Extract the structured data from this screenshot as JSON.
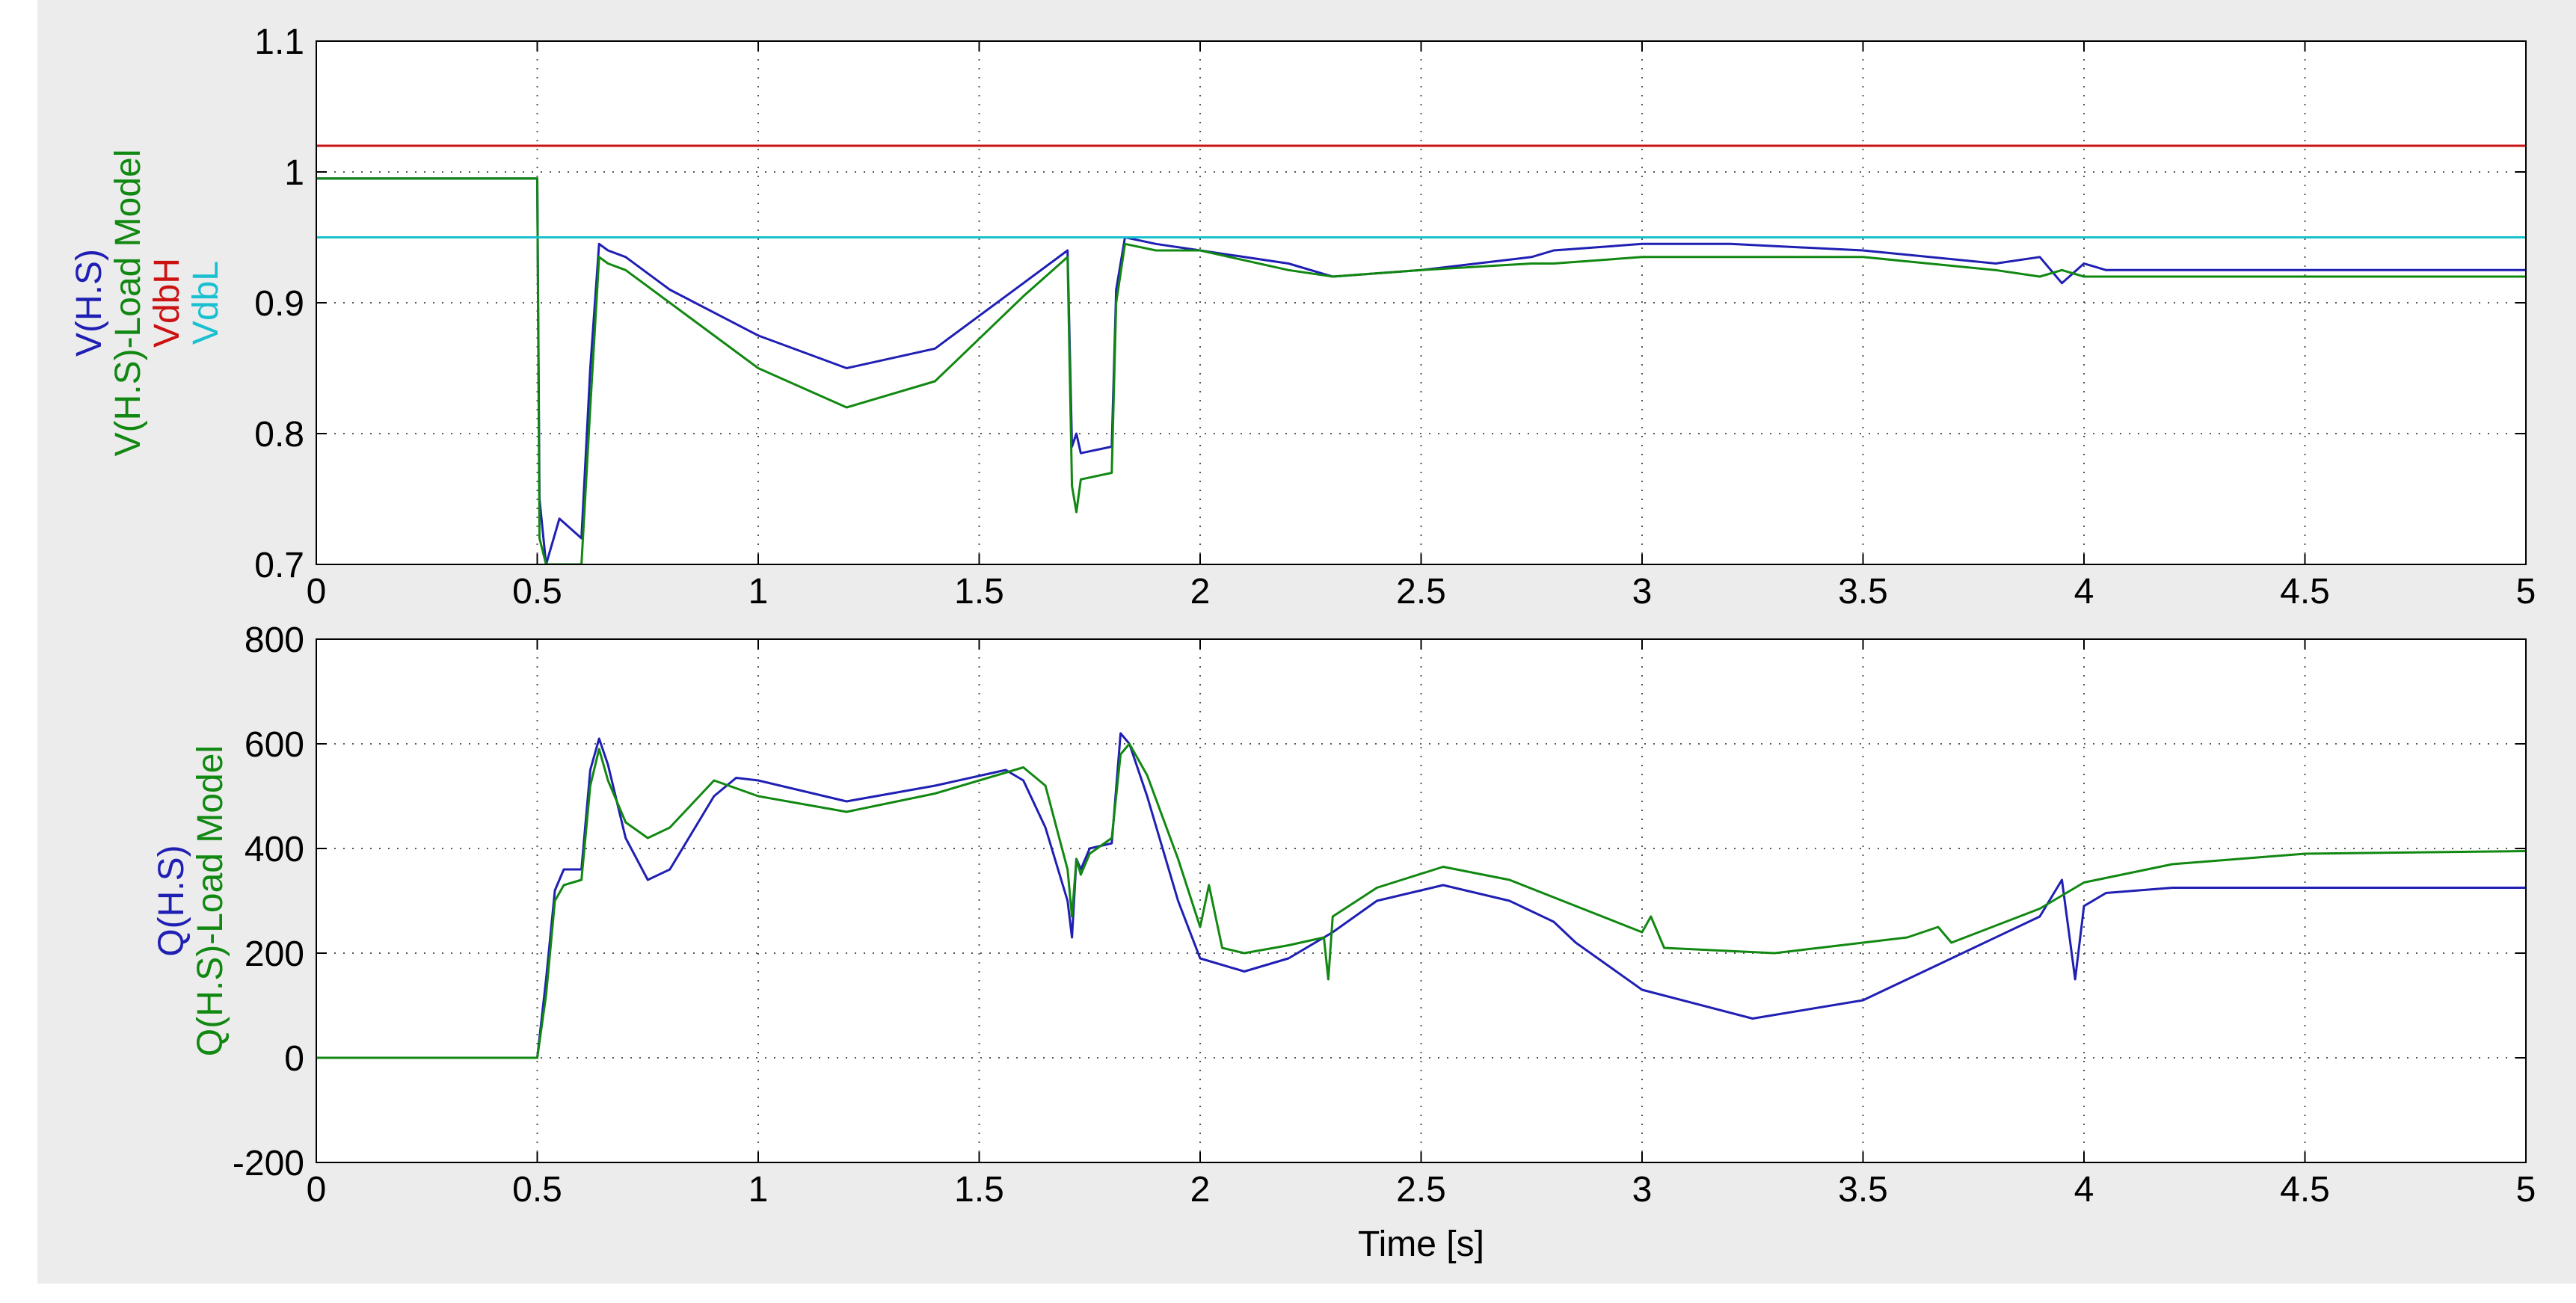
{
  "chart_data": [
    {
      "type": "line",
      "id": "voltage",
      "xlim": [
        0,
        5
      ],
      "ylim": [
        0.7,
        1.1
      ],
      "xticks": [
        "0",
        "0.5",
        "1",
        "1.5",
        "2",
        "2.5",
        "3",
        "3.5",
        "4",
        "4.5",
        "5"
      ],
      "yticks": [
        "0.7",
        "0.8",
        "0.9",
        "1",
        "1.1"
      ],
      "grid": true,
      "xlabel": "",
      "ylabel_lines": [
        {
          "text": "V(H.S)",
          "color": "#1f1fb4"
        },
        {
          "text": "V(H.S)-Load Model",
          "color": "#118811"
        },
        {
          "text": "VdbH",
          "color": "#cc1111"
        },
        {
          "text": "VdbL",
          "color": "#19c0d0"
        }
      ],
      "series": [
        {
          "name": "V(H.S)",
          "color": "#1f1fb4",
          "x": [
            0,
            0.49,
            0.5,
            0.505,
            0.52,
            0.55,
            0.6,
            0.62,
            0.64,
            0.66,
            0.7,
            0.8,
            1.0,
            1.2,
            1.4,
            1.6,
            1.7,
            1.71,
            1.72,
            1.73,
            1.8,
            1.81,
            1.83,
            1.9,
            2.0,
            2.2,
            2.3,
            2.5,
            2.75,
            2.8,
            3.0,
            3.2,
            3.5,
            3.8,
            3.9,
            3.95,
            4.0,
            4.05,
            5.0
          ],
          "y": [
            0.995,
            0.995,
            0.995,
            0.75,
            0.7,
            0.735,
            0.72,
            0.85,
            0.945,
            0.94,
            0.935,
            0.91,
            0.875,
            0.85,
            0.865,
            0.915,
            0.94,
            0.79,
            0.8,
            0.785,
            0.79,
            0.91,
            0.95,
            0.945,
            0.94,
            0.93,
            0.92,
            0.925,
            0.935,
            0.94,
            0.945,
            0.945,
            0.94,
            0.93,
            0.935,
            0.915,
            0.93,
            0.925,
            0.925
          ]
        },
        {
          "name": "V(H.S)-Load Model",
          "color": "#118811",
          "x": [
            0,
            0.49,
            0.5,
            0.505,
            0.52,
            0.55,
            0.6,
            0.62,
            0.64,
            0.66,
            0.7,
            0.8,
            1.0,
            1.2,
            1.4,
            1.6,
            1.7,
            1.71,
            1.72,
            1.73,
            1.8,
            1.81,
            1.83,
            1.9,
            2.0,
            2.2,
            2.3,
            2.5,
            2.75,
            2.8,
            3.0,
            3.2,
            3.5,
            3.8,
            3.9,
            3.95,
            4.0,
            4.05,
            5.0
          ],
          "y": [
            0.995,
            0.995,
            0.995,
            0.72,
            0.7,
            0.7,
            0.7,
            0.82,
            0.935,
            0.93,
            0.925,
            0.9,
            0.85,
            0.82,
            0.84,
            0.905,
            0.935,
            0.76,
            0.74,
            0.765,
            0.77,
            0.9,
            0.945,
            0.94,
            0.94,
            0.925,
            0.92,
            0.925,
            0.93,
            0.93,
            0.935,
            0.935,
            0.935,
            0.925,
            0.92,
            0.925,
            0.92,
            0.92,
            0.92
          ]
        },
        {
          "name": "VdbH",
          "color": "#cc1111",
          "x": [
            0,
            5
          ],
          "y": [
            1.02,
            1.02
          ]
        },
        {
          "name": "VdbL",
          "color": "#19c0d0",
          "x": [
            0,
            5
          ],
          "y": [
            0.95,
            0.95
          ]
        }
      ]
    },
    {
      "type": "line",
      "id": "reactive",
      "xlim": [
        0,
        5
      ],
      "ylim": [
        -200,
        800
      ],
      "xticks": [
        "0",
        "0.5",
        "1",
        "1.5",
        "2",
        "2.5",
        "3",
        "3.5",
        "4",
        "4.5",
        "5"
      ],
      "yticks": [
        "-200",
        "0",
        "200",
        "400",
        "600",
        "800"
      ],
      "grid": true,
      "xlabel": "Time [s]",
      "ylabel_lines": [
        {
          "text": "Q(H.S)",
          "color": "#1f1fb4"
        },
        {
          "text": "Q(H.S)-Load Model",
          "color": "#118811"
        }
      ],
      "series": [
        {
          "name": "Q(H.S)",
          "color": "#1f1fb4",
          "x": [
            0,
            0.49,
            0.5,
            0.52,
            0.54,
            0.56,
            0.6,
            0.62,
            0.64,
            0.66,
            0.7,
            0.75,
            0.8,
            0.9,
            0.95,
            1.0,
            1.2,
            1.4,
            1.56,
            1.6,
            1.65,
            1.7,
            1.71,
            1.72,
            1.73,
            1.75,
            1.8,
            1.82,
            1.84,
            1.88,
            1.95,
            2.0,
            2.1,
            2.2,
            2.3,
            2.4,
            2.55,
            2.7,
            2.8,
            2.85,
            3.0,
            3.25,
            3.5,
            3.75,
            3.9,
            3.95,
            3.98,
            4.0,
            4.05,
            4.2,
            4.5,
            5.0
          ],
          "y": [
            0,
            0,
            0,
            150,
            320,
            360,
            360,
            550,
            610,
            560,
            420,
            340,
            360,
            500,
            535,
            530,
            490,
            520,
            550,
            530,
            440,
            300,
            230,
            380,
            360,
            400,
            410,
            620,
            600,
            500,
            300,
            190,
            165,
            190,
            240,
            300,
            330,
            300,
            260,
            220,
            130,
            75,
            110,
            210,
            270,
            340,
            150,
            290,
            315,
            325,
            325,
            325
          ]
        },
        {
          "name": "Q(H.S)-Load Model",
          "color": "#118811",
          "x": [
            0,
            0.49,
            0.5,
            0.52,
            0.54,
            0.56,
            0.6,
            0.62,
            0.64,
            0.66,
            0.7,
            0.75,
            0.8,
            0.9,
            0.95,
            1.0,
            1.2,
            1.4,
            1.56,
            1.6,
            1.65,
            1.7,
            1.71,
            1.72,
            1.73,
            1.75,
            1.8,
            1.82,
            1.84,
            1.88,
            1.95,
            2.0,
            2.02,
            2.05,
            2.1,
            2.2,
            2.28,
            2.29,
            2.3,
            2.4,
            2.55,
            2.7,
            2.85,
            3.0,
            3.02,
            3.05,
            3.3,
            3.6,
            3.67,
            3.7,
            3.9,
            4.0,
            4.2,
            4.5,
            5.0
          ],
          "y": [
            0,
            0,
            0,
            120,
            300,
            330,
            340,
            520,
            590,
            530,
            450,
            420,
            440,
            530,
            515,
            500,
            470,
            505,
            545,
            555,
            520,
            360,
            270,
            380,
            350,
            390,
            420,
            580,
            600,
            540,
            380,
            250,
            330,
            210,
            200,
            215,
            230,
            150,
            270,
            325,
            365,
            340,
            290,
            240,
            270,
            210,
            200,
            230,
            250,
            220,
            285,
            335,
            370,
            390,
            395
          ]
        }
      ]
    }
  ]
}
